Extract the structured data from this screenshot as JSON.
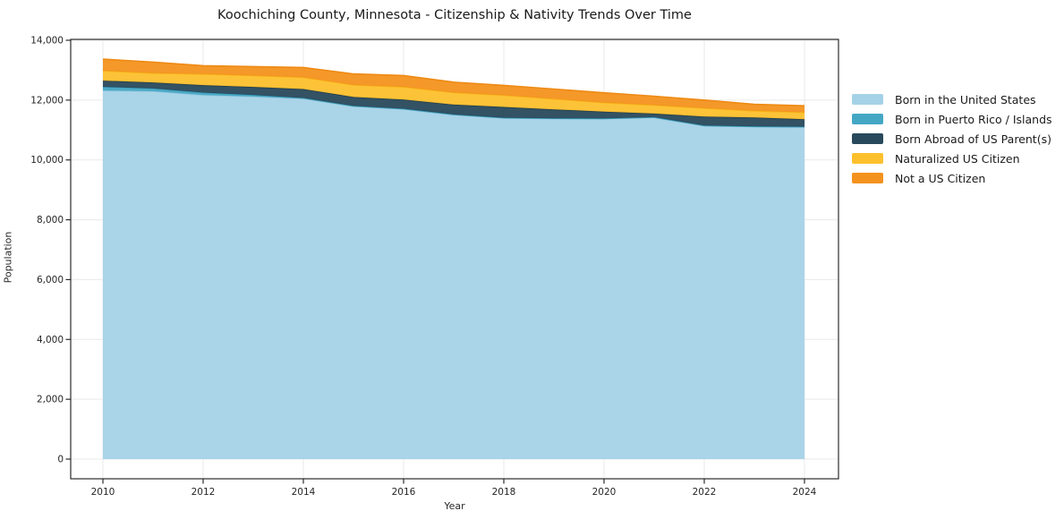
{
  "title": "Koochiching County, Minnesota - Citizenship & Nativity Trends Over Time",
  "chart_data": {
    "type": "area",
    "stacked": true,
    "title": "Koochiching County, Minnesota - Citizenship & Nativity Trends Over Time",
    "xlabel": "Year",
    "ylabel": "Population",
    "x": [
      2010,
      2011,
      2012,
      2013,
      2014,
      2015,
      2016,
      2017,
      2018,
      2019,
      2020,
      2021,
      2022,
      2023,
      2024
    ],
    "xticks": [
      2010,
      2012,
      2014,
      2016,
      2018,
      2020,
      2022,
      2024
    ],
    "ytick_values": [
      0,
      2000,
      4000,
      6000,
      8000,
      10000,
      12000,
      14000
    ],
    "ytick_labels": [
      "0",
      "2,000",
      "4,000",
      "6,000",
      "8,000",
      "10,000",
      "12,000",
      "14,000"
    ],
    "ylim": [
      0,
      14000
    ],
    "grid": true,
    "grid_color": "#e9e9e9",
    "axis_color": "#2b2b2b",
    "legend_position": "right",
    "series": [
      {
        "name": "Born in the United States",
        "color": "#a5d2e7",
        "edge": "#8ec6de",
        "values": [
          12320,
          12300,
          12170,
          12120,
          12050,
          11790,
          11700,
          11510,
          11400,
          11380,
          11375,
          11420,
          11140,
          11110,
          11100
        ]
      },
      {
        "name": "Born in Puerto Rico / Islands",
        "color": "#44a7c4",
        "edge": "#3a9cba",
        "values": [
          120,
          90,
          80,
          50,
          20,
          15,
          10,
          10,
          10,
          10,
          10,
          10,
          10,
          10,
          10
        ]
      },
      {
        "name": "Born Abroad of US Parent(s)",
        "color": "#28495b",
        "edge": "#223f4f",
        "values": [
          210,
          200,
          250,
          270,
          300,
          300,
          310,
          330,
          360,
          300,
          230,
          120,
          300,
          300,
          250
        ]
      },
      {
        "name": "Naturalized US Citizen",
        "color": "#fdc02d",
        "edge": "#f5b51a",
        "values": [
          330,
          310,
          370,
          380,
          390,
          400,
          420,
          400,
          390,
          350,
          300,
          280,
          280,
          220,
          230
        ]
      },
      {
        "name": "Not a US Citizen",
        "color": "#f4921f",
        "edge": "#ee8a14",
        "values": [
          390,
          370,
          280,
          300,
          330,
          370,
          380,
          350,
          330,
          330,
          330,
          300,
          270,
          220,
          220
        ]
      }
    ]
  }
}
